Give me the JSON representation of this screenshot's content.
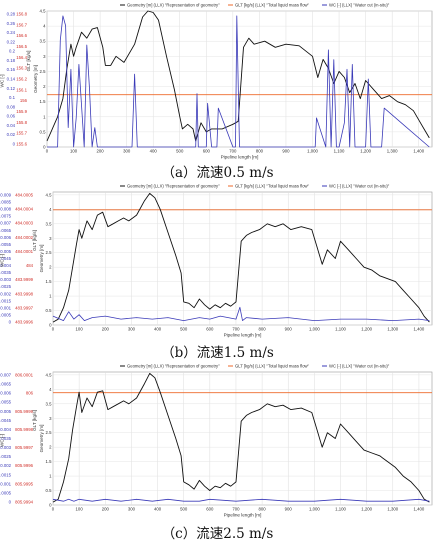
{
  "legend": [
    {
      "label": "Geometry [m] (LLX) \"Representation of geometry\"",
      "color": "#111111"
    },
    {
      "label": "GLT [kg/s] (LLX) \"Total liquid mass flow\"",
      "color": "#ee6a2b"
    },
    {
      "label": "WC [-] (LLX) \"Water cut (in-situ)\"",
      "color": "#3a3ab8"
    }
  ],
  "colors": {
    "geometry": "#111111",
    "glt": "#ee6a2b",
    "wc": "#3a3ab8",
    "red_axis": "#d1302a",
    "wc_axis": "#3a3ab8"
  },
  "chart_data": [
    {
      "type": "line",
      "caption": "（a）流速0.5 m/s",
      "xlabel": "Pipeline length [m]",
      "x_ticks": [
        0,
        100,
        200,
        300,
        400,
        500,
        600,
        700,
        800,
        900,
        1000,
        1100,
        1200,
        1300,
        1400
      ],
      "x_tick_labels": [
        "0",
        "100",
        "200",
        "300",
        "400",
        "500",
        "600",
        "700",
        "800",
        "900",
        "1,000",
        "1,100",
        "1,200",
        "1,300",
        "1,400"
      ],
      "xlim": [
        0,
        1450
      ],
      "ylabel_geometry": "Geometry [m]",
      "ylabel_glt": "GLT [kg/s]",
      "ylabel_wc": "WC [-]",
      "y_geometry_ticks": [
        "0",
        "0.5",
        "1",
        "1.5",
        "2",
        "2.5",
        "3",
        "3.5",
        "4",
        "4.5"
      ],
      "ylim_geometry": [
        0,
        4.5
      ],
      "y_glt_ticks": [
        "155.6",
        "155.7",
        "155.8",
        "155.9",
        "156",
        "156.1",
        "156.2",
        "156.3",
        "156.4",
        "156.5",
        "156.6",
        "156.7",
        "156.8"
      ],
      "y_wc_ticks": [
        "0",
        "0.02",
        "0.04",
        "0.06",
        "0.08",
        "0.1",
        "0.12",
        "0.14",
        "0.16",
        "0.18",
        "0.2",
        "0.22",
        "0.24",
        "0.26",
        "0.28"
      ],
      "ylim_wc": [
        0,
        0.28
      ],
      "glt_value": 156,
      "ylim_glt": [
        155.5,
        156.8
      ],
      "series": [
        {
          "key": "geometry",
          "x": [
            0,
            15,
            40,
            60,
            75,
            90,
            100,
            110,
            130,
            150,
            170,
            190,
            210,
            220,
            240,
            260,
            290,
            330,
            360,
            380,
            400,
            420,
            450,
            480,
            500,
            510,
            530,
            550,
            560,
            580,
            600,
            620,
            660,
            700,
            720,
            740,
            760,
            780,
            820,
            860,
            900,
            950,
            1000,
            1020,
            1040,
            1060,
            1080,
            1100,
            1120,
            1140,
            1160,
            1180,
            1200,
            1230,
            1260,
            1290,
            1320,
            1350,
            1380,
            1400,
            1420,
            1440
          ],
          "y": [
            0.2,
            0.5,
            1.0,
            1.6,
            2.6,
            3.4,
            3.0,
            3.3,
            3.8,
            3.6,
            3.9,
            3.95,
            3.3,
            2.7,
            2.7,
            3.0,
            2.8,
            3.4,
            4.3,
            4.5,
            4.45,
            4.2,
            3.0,
            1.9,
            1.0,
            0.6,
            0.75,
            0.6,
            0.2,
            0.8,
            0.5,
            0.6,
            0.6,
            0.75,
            0.85,
            3.3,
            3.6,
            3.4,
            3.5,
            3.3,
            3.4,
            3.35,
            3.0,
            2.3,
            2.9,
            2.6,
            2.1,
            2.5,
            2.3,
            1.8,
            2.1,
            1.6,
            2.2,
            1.9,
            1.6,
            1.7,
            1.5,
            1.4,
            1.2,
            0.9,
            0.6,
            0.3
          ]
        },
        {
          "key": "wc",
          "x": [
            0,
            40,
            50,
            60,
            70,
            80,
            90,
            100,
            110,
            120,
            140,
            150,
            160,
            170,
            180,
            190,
            230,
            320,
            330,
            340,
            350,
            380,
            400,
            430,
            460,
            480,
            500,
            560,
            565,
            570,
            600,
            605,
            620,
            640,
            645,
            700,
            710,
            715,
            725,
            740,
            800,
            1000,
            1010,
            1015,
            1050,
            1060,
            1070,
            1080,
            1090,
            1100,
            1120,
            1130,
            1140,
            1150,
            1160,
            1170,
            1200,
            1210,
            1220,
            1260,
            1270,
            1440
          ],
          "y": [
            0.0,
            0.0,
            0.22,
            0.27,
            0.25,
            0.04,
            0.16,
            0.0,
            0.06,
            0.17,
            0.0,
            0.21,
            0.12,
            0.0,
            0.04,
            0.0,
            0.0,
            0.0,
            0.15,
            0.0,
            0.0,
            0.0,
            0.0,
            0.0,
            0.0,
            0.0,
            0.0,
            0.0,
            0.11,
            0.0,
            0.0,
            0.09,
            0.0,
            0.0,
            0.08,
            0.0,
            0.0,
            0.27,
            0.0,
            0.0,
            0.0,
            0.0,
            0.0,
            0.06,
            0.0,
            0.2,
            0.0,
            0.18,
            0.0,
            0.0,
            0.05,
            0.16,
            0.0,
            0.17,
            0.0,
            0.0,
            0.0,
            0.14,
            0.0,
            0.0,
            0.08,
            0.0
          ]
        }
      ]
    },
    {
      "type": "line",
      "caption": "（b）流速1.5 m/s",
      "xlabel": "Pipeline length [m]",
      "x_ticks": [
        0,
        100,
        200,
        300,
        400,
        500,
        600,
        700,
        800,
        900,
        1000,
        1100,
        1200,
        1300,
        1400
      ],
      "x_tick_labels": [
        "0",
        "100",
        "200",
        "300",
        "400",
        "500",
        "600",
        "700",
        "800",
        "900",
        "1,000",
        "1,100",
        "1,200",
        "1,300",
        "1,400"
      ],
      "xlim": [
        0,
        1450
      ],
      "ylabel_geometry": "Geometry [m]",
      "ylabel_glt": "GLT [kg/s]",
      "ylabel_wc": "WC [-]",
      "y_geometry_ticks": [
        "0",
        "0.5",
        "1",
        "1.5",
        "2",
        "2.5",
        "3",
        "3.5",
        "4",
        "4.5"
      ],
      "ylim_geometry": [
        0,
        4.6
      ],
      "y_glt_ticks": [
        "483.9996",
        "483.9997",
        "483.9998",
        "483.9999",
        "484",
        "484.0001",
        "484.0002",
        "484.0003",
        "484.0004",
        "484.0005"
      ],
      "y_wc_ticks": [
        "0",
        "0.0005",
        "0.001",
        "0.0015",
        "0.002",
        "0.0025",
        "0.003",
        "0.0035",
        "0.004",
        "0.0045",
        "0.005",
        "0.0055",
        "0.006",
        "0.0065",
        "0.007",
        "0.0075",
        "0.008",
        "0.0085",
        "0.009"
      ],
      "ylim_wc": [
        0,
        0.009
      ],
      "glt_value": 484.00039,
      "ylim_glt": [
        483.99955,
        484.00052
      ],
      "series": [
        {
          "key": "geometry",
          "x": [
            0,
            20,
            40,
            60,
            75,
            90,
            100,
            110,
            130,
            150,
            170,
            190,
            210,
            230,
            250,
            270,
            290,
            320,
            350,
            370,
            390,
            410,
            440,
            470,
            490,
            500,
            520,
            540,
            560,
            580,
            600,
            620,
            640,
            660,
            680,
            700,
            720,
            740,
            760,
            790,
            820,
            850,
            880,
            910,
            950,
            990,
            1010,
            1030,
            1050,
            1080,
            1100,
            1130,
            1160,
            1190,
            1220,
            1250,
            1280,
            1310,
            1340,
            1370,
            1400,
            1420,
            1440
          ],
          "y": [
            0.1,
            0.2,
            0.6,
            1.2,
            2.0,
            2.8,
            3.3,
            3.0,
            3.6,
            3.3,
            3.8,
            3.9,
            3.4,
            3.5,
            3.6,
            3.7,
            3.6,
            3.8,
            4.3,
            4.55,
            4.4,
            4.0,
            3.2,
            2.4,
            1.8,
            0.8,
            0.75,
            0.6,
            0.9,
            0.7,
            0.55,
            0.7,
            0.6,
            0.75,
            0.65,
            0.8,
            2.9,
            3.1,
            3.2,
            3.3,
            3.5,
            3.4,
            3.5,
            3.3,
            3.4,
            3.3,
            2.7,
            2.1,
            2.6,
            2.3,
            2.9,
            2.6,
            2.3,
            2.0,
            1.9,
            1.7,
            1.6,
            1.5,
            1.2,
            0.9,
            0.6,
            0.3,
            0.1
          ]
        },
        {
          "key": "wc",
          "x": [
            0,
            40,
            60,
            80,
            100,
            120,
            150,
            200,
            260,
            320,
            380,
            440,
            500,
            560,
            600,
            640,
            700,
            715,
            725,
            740,
            800,
            900,
            1000,
            1100,
            1200,
            1300,
            1400,
            1440
          ],
          "y": [
            0.0006,
            0.0003,
            0.0009,
            0.0004,
            0.0007,
            0.0003,
            0.0005,
            0.0006,
            0.0004,
            0.0005,
            0.0004,
            0.0005,
            0.0003,
            0.0005,
            0.0004,
            0.0006,
            0.0004,
            0.0012,
            0.0003,
            0.0005,
            0.0004,
            0.0005,
            0.0003,
            0.0004,
            0.0004,
            0.0003,
            0.0004,
            0.0003
          ]
        }
      ]
    },
    {
      "type": "line",
      "caption": "（c）流速2.5 m/s",
      "xlabel": "Pipeline length [m]",
      "x_ticks": [
        0,
        100,
        200,
        300,
        400,
        500,
        600,
        700,
        800,
        900,
        1000,
        1100,
        1200,
        1300,
        1400
      ],
      "x_tick_labels": [
        "0",
        "100",
        "200",
        "300",
        "400",
        "500",
        "600",
        "700",
        "800",
        "900",
        "1,000",
        "1,100",
        "1,200",
        "1,300",
        "1,400"
      ],
      "xlim": [
        0,
        1450
      ],
      "ylabel_geometry": "Geometry [m]",
      "ylabel_glt": "GLT [kg/s]",
      "ylabel_wc": "WC [-]",
      "y_geometry_ticks": [
        "0",
        "0.5",
        "1",
        "1.5",
        "2",
        "2.5",
        "3",
        "3.5",
        "4",
        "4.5"
      ],
      "ylim_geometry": [
        0,
        4.6
      ],
      "y_glt_ticks": [
        "805.9994",
        "805.9995",
        "805.9996",
        "805.9997",
        "805.9998",
        "805.9999",
        "806",
        "806.0001"
      ],
      "y_wc_ticks": [
        "0",
        "0.0005",
        "0.001",
        "0.0015",
        "0.002",
        "0.0025",
        "0.003",
        "0.0035",
        "0.004",
        "0.0045",
        "0.005",
        "0.0055",
        "0.006",
        "0.0065",
        "0.007"
      ],
      "ylim_wc": [
        0,
        0.007
      ],
      "glt_value": 806.0,
      "ylim_glt": [
        805.99935,
        806.00012
      ],
      "series": [
        {
          "key": "geometry",
          "x": [
            0,
            20,
            40,
            60,
            75,
            90,
            100,
            110,
            130,
            150,
            170,
            190,
            210,
            230,
            250,
            270,
            290,
            320,
            350,
            370,
            390,
            410,
            440,
            470,
            490,
            500,
            520,
            540,
            560,
            580,
            600,
            620,
            640,
            660,
            680,
            700,
            720,
            740,
            760,
            790,
            820,
            850,
            880,
            910,
            950,
            990,
            1010,
            1030,
            1050,
            1080,
            1100,
            1130,
            1160,
            1190,
            1220,
            1250,
            1280,
            1310,
            1340,
            1370,
            1400,
            1420,
            1440
          ],
          "y": [
            0.1,
            0.2,
            0.8,
            1.6,
            2.6,
            3.4,
            3.9,
            3.2,
            3.7,
            3.4,
            3.9,
            3.95,
            3.3,
            3.4,
            3.5,
            3.6,
            3.5,
            3.7,
            4.2,
            4.55,
            4.4,
            3.9,
            3.1,
            2.3,
            1.7,
            0.8,
            0.7,
            0.55,
            0.85,
            0.65,
            0.5,
            0.65,
            0.6,
            0.75,
            0.65,
            0.8,
            2.9,
            3.1,
            3.2,
            3.3,
            3.5,
            3.4,
            3.45,
            3.3,
            3.35,
            3.2,
            2.6,
            2.0,
            2.5,
            2.3,
            2.8,
            2.5,
            2.2,
            1.9,
            1.8,
            1.7,
            1.5,
            1.3,
            1.0,
            0.8,
            0.5,
            0.2,
            0.1
          ]
        },
        {
          "key": "wc",
          "x": [
            0,
            40,
            60,
            80,
            100,
            150,
            200,
            260,
            320,
            380,
            440,
            500,
            560,
            600,
            700,
            800,
            900,
            1000,
            1100,
            1200,
            1300,
            1400,
            1440
          ],
          "y": [
            0.0003,
            0.0002,
            0.0003,
            0.0002,
            0.0003,
            0.0002,
            0.0003,
            0.0002,
            0.0003,
            0.0002,
            0.0003,
            0.0002,
            0.0002,
            0.0003,
            0.0002,
            0.0003,
            0.0002,
            0.0002,
            0.0003,
            0.0002,
            0.0002,
            0.0003,
            0.0002
          ]
        }
      ]
    }
  ]
}
